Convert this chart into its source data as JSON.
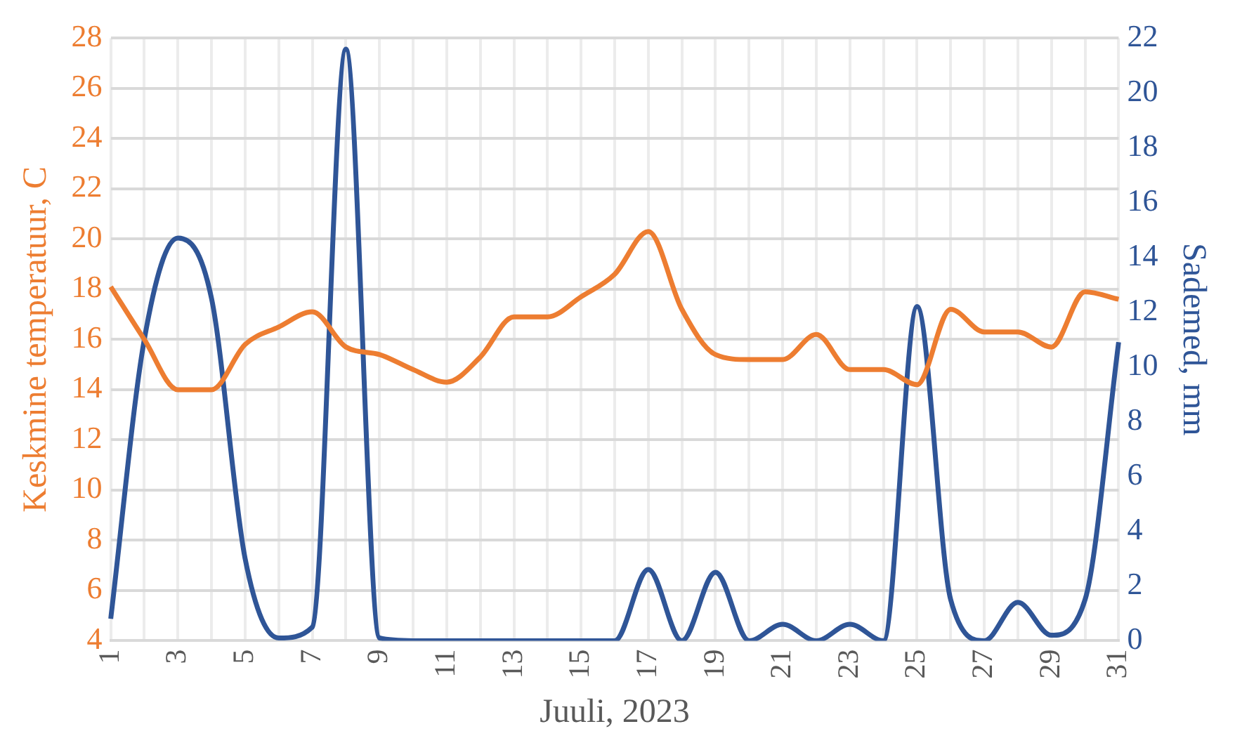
{
  "chart_data": {
    "type": "line",
    "xlabel": "Juuli, 2023",
    "ylabel": "Keskmine temperatuur, C",
    "y2label": "Sademed, mm",
    "categories": [
      "1",
      null,
      "3",
      null,
      "5",
      null,
      "7",
      null,
      "9",
      null,
      "11",
      null,
      "13",
      null,
      "15",
      null,
      "17",
      null,
      "19",
      null,
      "21",
      null,
      "23",
      null,
      "25",
      null,
      "27",
      null,
      "29",
      null,
      "31"
    ],
    "series": [
      {
        "color": "#ed7d31",
        "values": [
          18.1,
          16,
          14,
          14,
          15.8,
          16.5,
          17.1,
          15.7,
          15.4,
          14.8,
          14.3,
          15.3,
          16.9,
          16.9,
          17.7,
          18.6,
          20.3,
          17.2,
          15.4,
          15.2,
          15.2,
          16.2,
          14.8,
          14.8,
          14.2,
          17.2,
          16.3,
          16.3,
          15.7,
          17.9,
          17.6
        ]
      },
      {
        "color": "#2f5597",
        "axis": "y2",
        "values": [
          0.8,
          11,
          14.7,
          12.5,
          3,
          0.1,
          0.5,
          21.6,
          0.1,
          0,
          0,
          0,
          0,
          0,
          0,
          0,
          2.6,
          0,
          2.5,
          0,
          0.6,
          0,
          0.6,
          0,
          12.2,
          1.5,
          0,
          1.4,
          0.2,
          1.5,
          10.9
        ]
      }
    ],
    "ylim": [
      4,
      28
    ],
    "yticks": [
      4,
      6,
      8,
      10,
      12,
      14,
      16,
      18,
      20,
      22,
      24,
      26,
      28
    ],
    "y2lim": [
      0,
      22
    ],
    "y2ticks": [
      0,
      2,
      4,
      6,
      8,
      10,
      12,
      14,
      16,
      18,
      20,
      22
    ],
    "grid": true,
    "legend": false,
    "marker": "none",
    "line_style": "solid"
  }
}
